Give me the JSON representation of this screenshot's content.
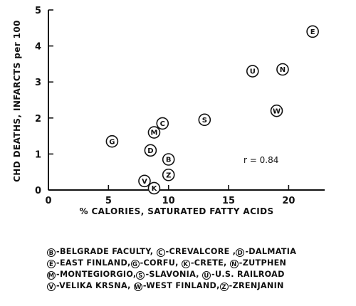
{
  "chart_data": {
    "type": "scatter",
    "xlabel": "% CALORIES, SATURATED FATTY ACIDS",
    "ylabel": "CHD DEATHS, INFARCTS per 100",
    "xlim": [
      0,
      23
    ],
    "ylim": [
      0,
      5
    ],
    "xticks": [
      0,
      5,
      10,
      15,
      20
    ],
    "yticks": [
      0,
      1,
      2,
      3,
      4,
      5
    ],
    "x_tick_labels": [
      "0",
      "5",
      "10",
      "15",
      "20"
    ],
    "y_tick_labels": [
      "0",
      "1",
      "2",
      "3",
      "4",
      "5"
    ],
    "grid": false,
    "annotation": "r = 0.84",
    "points": [
      {
        "code": "E",
        "x": 22.0,
        "y": 4.4
      },
      {
        "code": "N",
        "x": 19.5,
        "y": 3.35
      },
      {
        "code": "U",
        "x": 17.0,
        "y": 3.3
      },
      {
        "code": "W",
        "x": 19.0,
        "y": 2.2
      },
      {
        "code": "S",
        "x": 13.0,
        "y": 1.95
      },
      {
        "code": "C",
        "x": 9.5,
        "y": 1.85
      },
      {
        "code": "M",
        "x": 8.8,
        "y": 1.6
      },
      {
        "code": "G",
        "x": 5.3,
        "y": 1.35
      },
      {
        "code": "D",
        "x": 8.5,
        "y": 1.1
      },
      {
        "code": "B",
        "x": 10.0,
        "y": 0.85
      },
      {
        "code": "Z",
        "x": 10.0,
        "y": 0.42
      },
      {
        "code": "V",
        "x": 8.0,
        "y": 0.25
      },
      {
        "code": "K",
        "x": 8.8,
        "y": 0.05
      }
    ]
  },
  "legend_lines": [
    [
      {
        "code": "B",
        "text": "-BELGRADE FACULTY, "
      },
      {
        "code": "C",
        "text": "-CREVALCORE ,"
      },
      {
        "code": "D",
        "text": "-DALMATIA"
      }
    ],
    [
      {
        "code": "E",
        "text": "-EAST FINLAND,"
      },
      {
        "code": "G",
        "text": "-CORFU, "
      },
      {
        "code": "K",
        "text": "-CRETE, "
      },
      {
        "code": "N",
        "text": "-ZUTPHEN"
      }
    ],
    [
      {
        "code": "M",
        "text": "-MONTEGIORGIO,"
      },
      {
        "code": "S",
        "text": "-SLAVONIA, "
      },
      {
        "code": "U",
        "text": "-U.S. RAILROAD"
      }
    ],
    [
      {
        "code": "V",
        "text": "-VELIKA KRSNA, "
      },
      {
        "code": "W",
        "text": "-WEST FINLAND,"
      },
      {
        "code": "Z",
        "text": "-ZRENJANIN"
      }
    ]
  ]
}
